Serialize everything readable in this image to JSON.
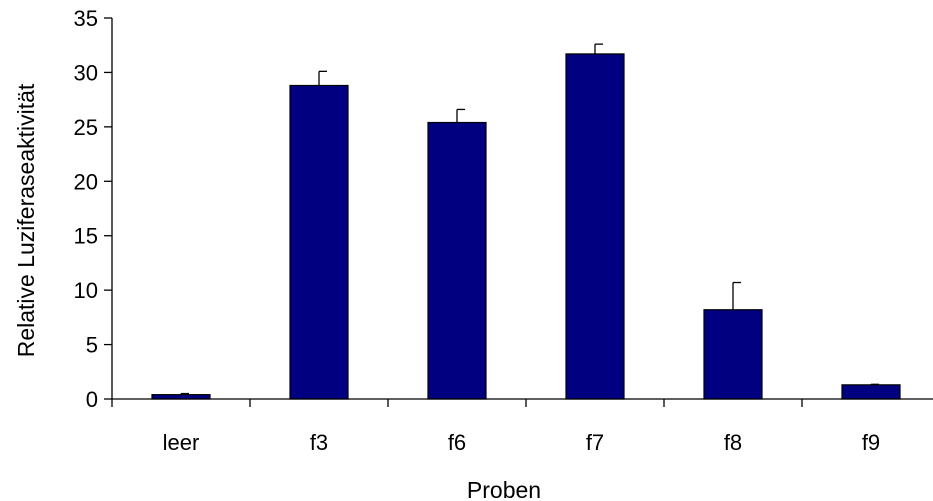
{
  "chart_data": {
    "type": "bar",
    "categories": [
      "leer",
      "f3",
      "f6",
      "f7",
      "f8",
      "f9"
    ],
    "series": [
      {
        "values": [
          0.4,
          28.8,
          25.4,
          31.7,
          8.2,
          1.3
        ],
        "error_upper": [
          0.1,
          1.3,
          1.2,
          0.9,
          2.5,
          0.05
        ],
        "color": "#000080"
      }
    ],
    "title": "",
    "xlabel": "Proben",
    "ylabel": "Relative Luziferaseaktivität",
    "ylim": [
      0,
      35
    ],
    "yticks": [
      0,
      5,
      10,
      15,
      20,
      25,
      30,
      35
    ],
    "grid": false,
    "legend": "none"
  }
}
